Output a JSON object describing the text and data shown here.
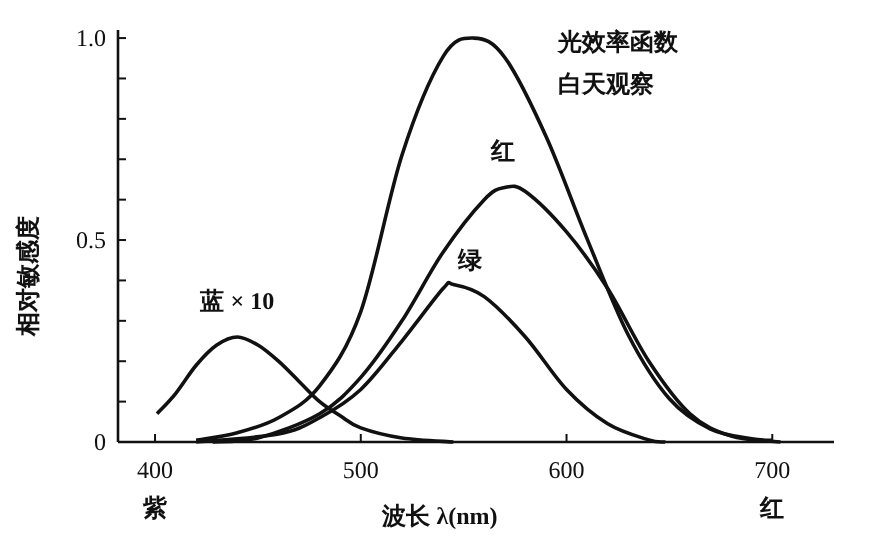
{
  "chart_data": {
    "type": "line",
    "xlabel": "波长 λ(nm)",
    "ylabel": "相对敏感度",
    "xlim": [
      382,
      730
    ],
    "ylim": [
      0,
      1.02
    ],
    "xticks": [
      400,
      500,
      600,
      700
    ],
    "yticks": [
      0,
      {
        "value": 0.1,
        "label": null
      },
      {
        "value": 0.2,
        "label": null
      },
      {
        "value": 0.3,
        "label": null
      },
      {
        "value": 0.4,
        "label": null
      },
      {
        "value": 0.5,
        "label": "0.5"
      },
      {
        "value": 0.6,
        "label": null
      },
      {
        "value": 0.7,
        "label": null
      },
      {
        "value": 0.8,
        "label": null
      },
      {
        "value": 0.9,
        "label": null
      },
      {
        "value": 1,
        "label": "1.0"
      }
    ],
    "grid": false,
    "marker": "none",
    "line_style": "solid",
    "series": [
      {
        "name": "光效率函数白天观察",
        "color": "#111111",
        "x": [
          420,
          440,
          460,
          480,
          500,
          520,
          540,
          555,
          570,
          590,
          610,
          630,
          650,
          670,
          690,
          700
        ],
        "values": [
          0.004,
          0.023,
          0.06,
          0.139,
          0.323,
          0.71,
          0.954,
          1.0,
          0.952,
          0.757,
          0.503,
          0.265,
          0.107,
          0.032,
          0.008,
          0.004
        ]
      },
      {
        "name": "红",
        "color": "#111111",
        "x": [
          428,
          450,
          480,
          500,
          520,
          540,
          560,
          570,
          580,
          600,
          620,
          640,
          660,
          680,
          704
        ],
        "values": [
          0,
          0.01,
          0.07,
          0.16,
          0.3,
          0.47,
          0.6,
          0.63,
          0.62,
          0.52,
          0.38,
          0.2,
          0.07,
          0.015,
          0
        ]
      },
      {
        "name": "绿",
        "color": "#111111",
        "x": [
          420,
          460,
          480,
          500,
          520,
          540,
          545,
          560,
          580,
          600,
          620,
          640,
          648
        ],
        "values": [
          0,
          0.02,
          0.06,
          0.13,
          0.25,
          0.38,
          0.39,
          0.36,
          0.26,
          0.13,
          0.045,
          0.005,
          0
        ]
      },
      {
        "name": "蓝 × 10",
        "color": "#111111",
        "x": [
          401,
          410,
          420,
          430,
          440,
          450,
          460,
          470,
          480,
          490,
          500,
          520,
          545
        ],
        "values": [
          0.07,
          0.12,
          0.19,
          0.24,
          0.26,
          0.24,
          0.2,
          0.15,
          0.1,
          0.065,
          0.035,
          0.01,
          0
        ]
      }
    ],
    "annotations": [
      "紫",
      "红"
    ]
  }
}
